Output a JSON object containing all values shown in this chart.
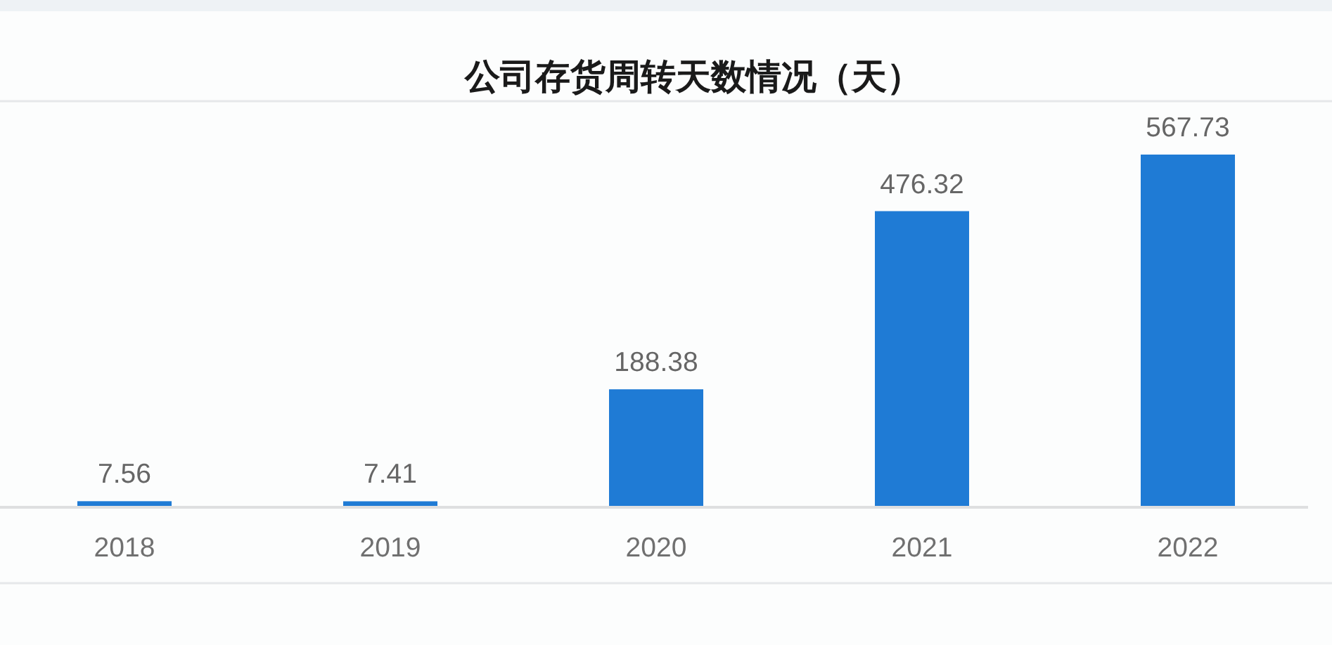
{
  "chart_data": {
    "type": "bar",
    "title": "公司存货周转天数情况（天）",
    "categories": [
      "2018",
      "2019",
      "2020",
      "2021",
      "2022"
    ],
    "values": [
      7.56,
      7.41,
      188.38,
      476.32,
      567.73
    ],
    "color": "#1f7bd5",
    "data_labels": true
  }
}
